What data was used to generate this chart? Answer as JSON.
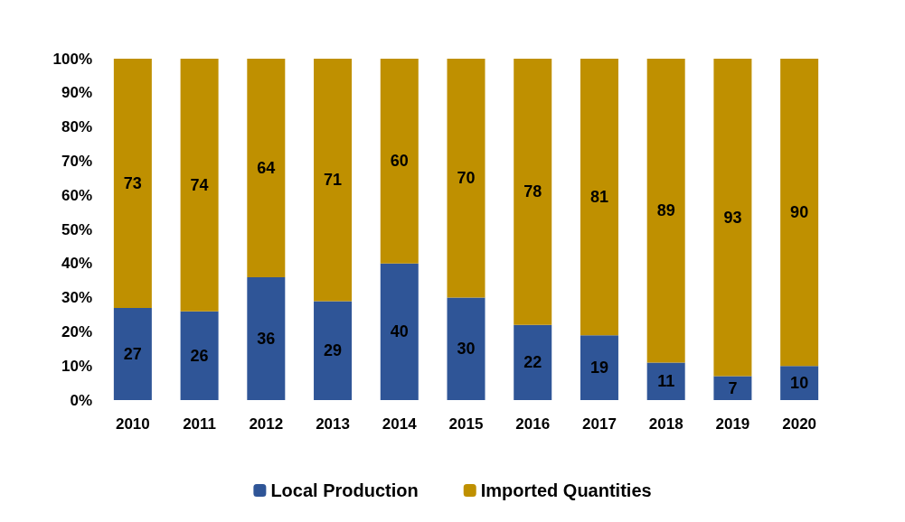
{
  "chart_data": {
    "type": "bar",
    "stacked": true,
    "data_labels": true,
    "grid": false,
    "legend": "bottom",
    "categories": [
      "2010",
      "2011",
      "2012",
      "2013",
      "2014",
      "2015",
      "2016",
      "2017",
      "2018",
      "2019",
      "2020"
    ],
    "series": [
      {
        "name": "Local Production",
        "color": "#2f5597",
        "values": [
          27,
          26,
          36,
          29,
          40,
          30,
          22,
          19,
          11,
          7,
          10
        ]
      },
      {
        "name": "Imported Quantities",
        "color": "#bf9000",
        "values": [
          73,
          74,
          64,
          71,
          60,
          70,
          78,
          81,
          89,
          93,
          90
        ]
      }
    ],
    "ylim": [
      0,
      100
    ],
    "yticks": [
      {
        "value": 0,
        "label": "0%"
      },
      {
        "value": 10,
        "label": "10%"
      },
      {
        "value": 20,
        "label": "20%"
      },
      {
        "value": 30,
        "label": "30%"
      },
      {
        "value": 40,
        "label": "40%"
      },
      {
        "value": 50,
        "label": "50%"
      },
      {
        "value": 60,
        "label": "60%"
      },
      {
        "value": 70,
        "label": "70%"
      },
      {
        "value": 80,
        "label": "80%"
      },
      {
        "value": 90,
        "label": "90%"
      },
      {
        "value": 100,
        "label": "100%"
      }
    ]
  }
}
